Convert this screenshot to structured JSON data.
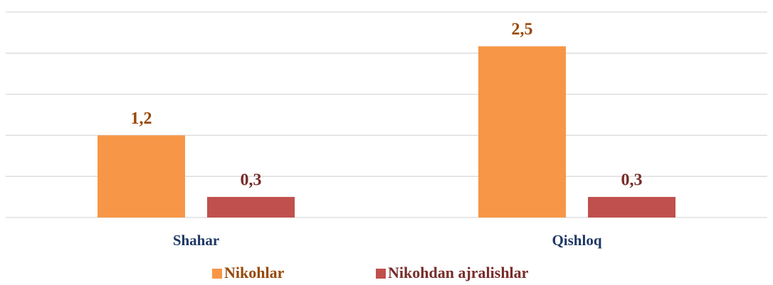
{
  "chart_data": {
    "type": "bar",
    "categories": [
      "Shahar",
      "Qishloq"
    ],
    "series": [
      {
        "name": "Nikohlar",
        "color": "#f79646",
        "label_color": "#984807",
        "values": [
          1.2,
          2.5
        ],
        "value_labels": [
          "1,2",
          "2,5"
        ]
      },
      {
        "name": "Nikohdan ajralishlar",
        "color": "#c0504d",
        "label_color": "#772c2a",
        "values": [
          0.3,
          0.3
        ],
        "value_labels": [
          "0,3",
          "0,3"
        ]
      }
    ],
    "ylim": [
      0,
      3
    ],
    "yticks": [
      0,
      0.6,
      1.2,
      1.8,
      2.4,
      3
    ],
    "grid": true,
    "legend": "bottom"
  }
}
